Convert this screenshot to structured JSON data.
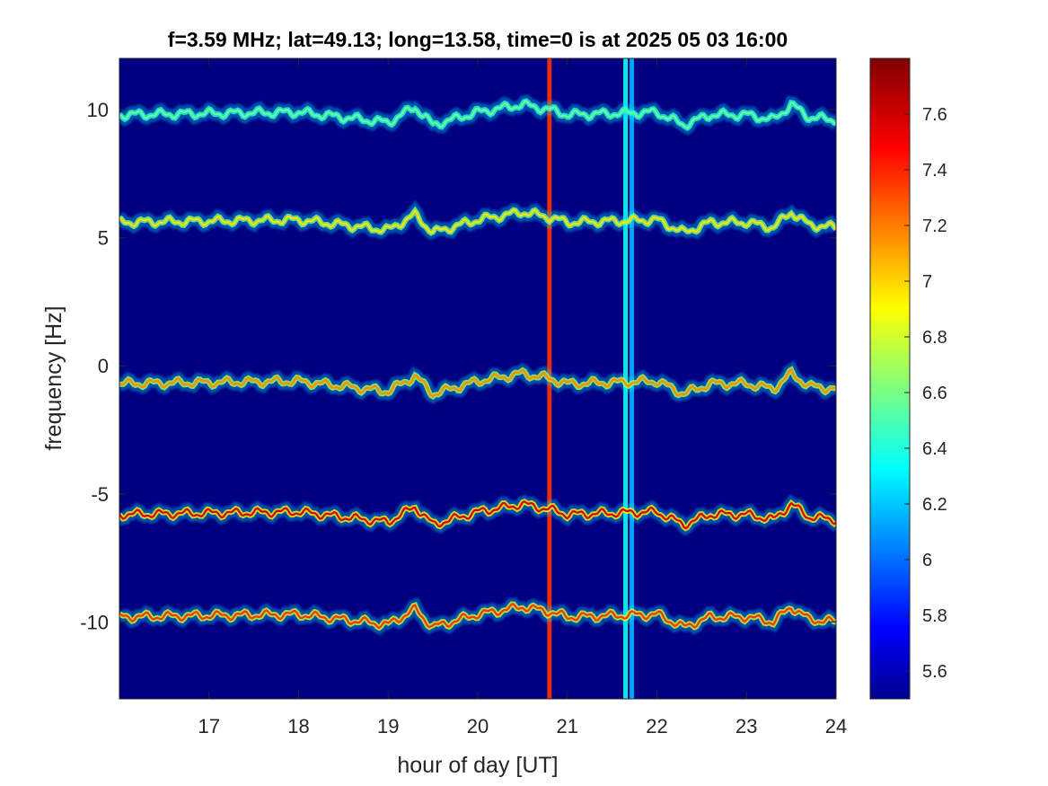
{
  "chart_data": {
    "type": "heatmap",
    "title": "f=3.59 MHz;  lat=49.13; long=13.58, time=0 is at 2025 05 03 16:00",
    "xlabel": "hour of day [UT]",
    "ylabel": "frequency [Hz]",
    "xlim": [
      16.0,
      24.0
    ],
    "ylim": [
      -13.0,
      12.0
    ],
    "xticks": [
      17,
      18,
      19,
      20,
      21,
      22,
      23,
      24
    ],
    "yticks": [
      -10,
      -5,
      0,
      5,
      10
    ],
    "colorbar": {
      "colormap": "jet",
      "clim": [
        5.5,
        7.8
      ],
      "ticks": [
        "5.6",
        "5.8",
        "6",
        "6.2",
        "6.4",
        "6.6",
        "6.8",
        "7",
        "7.2",
        "7.4",
        "7.6"
      ]
    },
    "background_value": 5.5,
    "traces": [
      {
        "base_hz": 9.8,
        "peak_value": 6.6
      },
      {
        "base_hz": 5.6,
        "peak_value": 7.0
      },
      {
        "base_hz": -0.7,
        "peak_value": 7.2
      },
      {
        "base_hz": -5.8,
        "peak_value": 7.6
      },
      {
        "base_hz": -9.8,
        "peak_value": 7.4
      }
    ],
    "trace_offset_profile": {
      "hours": [
        16.0,
        17.0,
        18.0,
        18.5,
        19.0,
        19.3,
        19.5,
        20.0,
        20.5,
        20.8,
        21.0,
        21.5,
        22.0,
        22.3,
        22.6,
        23.0,
        23.3,
        23.5,
        23.7,
        24.0
      ],
      "offset_hz": [
        0.0,
        0.05,
        0.1,
        -0.1,
        -0.3,
        0.3,
        -0.4,
        0.1,
        0.4,
        0.2,
        0.0,
        0.05,
        0.1,
        -0.4,
        0.0,
        0.0,
        -0.2,
        0.4,
        -0.1,
        -0.2
      ]
    },
    "vertical_bands": [
      {
        "hour": 20.8,
        "value": 7.4
      },
      {
        "hour": 21.65,
        "value": 6.4
      },
      {
        "hour": 21.72,
        "value": 6.2
      }
    ]
  }
}
